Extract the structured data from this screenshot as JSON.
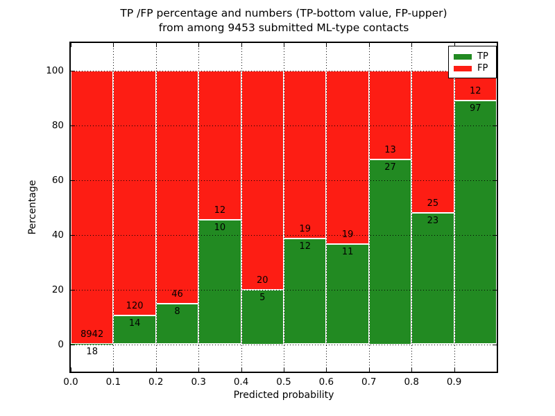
{
  "title": {
    "line1": "TP /FP percentage and numbers (TP-bottom value, FP-upper)",
    "line2": "from among 9453 submitted ML-type contacts"
  },
  "axes": {
    "xlabel": "Predicted probability",
    "ylabel": "Percentage",
    "x_tick_labels": [
      "0.0",
      "0.1",
      "0.2",
      "0.3",
      "0.4",
      "0.5",
      "0.6",
      "0.7",
      "0.8",
      "0.9"
    ],
    "y_tick_labels": [
      "0",
      "20",
      "40",
      "60",
      "80",
      "100"
    ],
    "y_tick_values": [
      0,
      20,
      40,
      60,
      80,
      100
    ]
  },
  "legend": {
    "position": "upper right",
    "items": [
      {
        "label": "TP",
        "color": "#228a22"
      },
      {
        "label": "FP",
        "color": "#fd1d14"
      }
    ]
  },
  "chart_data": {
    "type": "bar",
    "stacked": true,
    "normalized_to_percent": true,
    "title": "TP /FP percentage and numbers (TP-bottom value, FP-upper) from among 9453 submitted ML-type contacts",
    "xlabel": "Predicted probability",
    "ylabel": "Percentage",
    "xlim": [
      0.0,
      1.0
    ],
    "ylim": [
      -10,
      110
    ],
    "grid": true,
    "grid_style": "dotted",
    "legend_position": "upper right",
    "total_submitted": 9453,
    "bin_width": 0.1,
    "bin_starts": [
      0.0,
      0.1,
      0.2,
      0.3,
      0.4,
      0.5,
      0.6,
      0.7,
      0.8,
      0.9
    ],
    "series": [
      {
        "name": "TP",
        "color": "#228a22",
        "counts": [
          18,
          14,
          8,
          10,
          5,
          12,
          11,
          27,
          23,
          97
        ]
      },
      {
        "name": "FP",
        "color": "#fd1d14",
        "counts": [
          8942,
          120,
          46,
          12,
          20,
          19,
          19,
          13,
          25,
          12
        ]
      }
    ],
    "annotation_rule": "FP count printed above the TP/FP boundary, TP count printed below it"
  }
}
